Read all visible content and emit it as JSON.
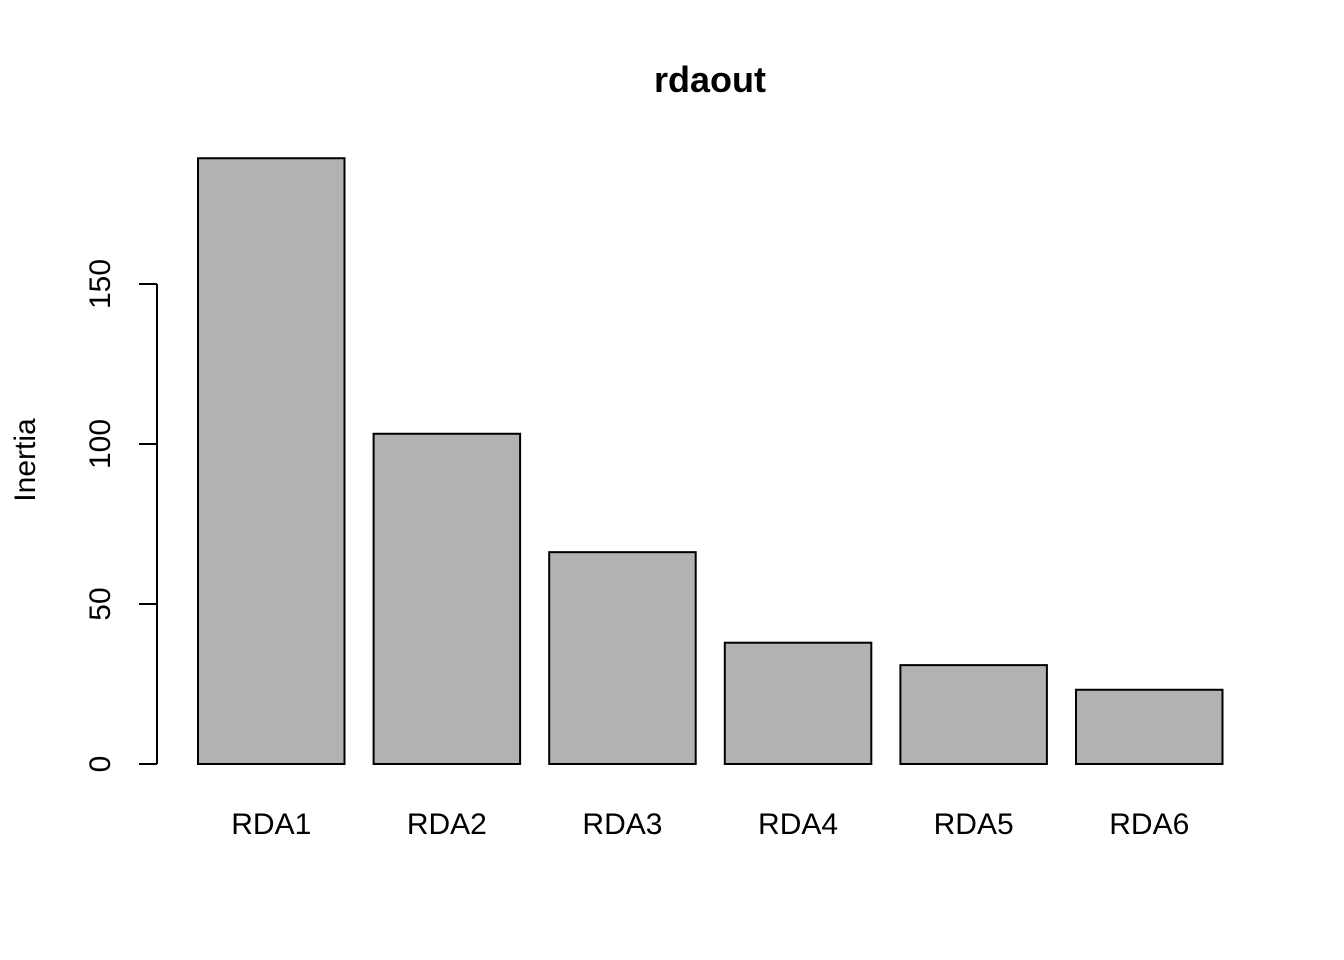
{
  "chart_data": {
    "type": "bar",
    "title": "rdaout",
    "xlabel": "",
    "ylabel": "Inertia",
    "categories": [
      "RDA1",
      "RDA2",
      "RDA3",
      "RDA4",
      "RDA5",
      "RDA6"
    ],
    "values": [
      189.3,
      103.2,
      66.2,
      37.9,
      30.9,
      23.2
    ],
    "ylim": [
      0,
      190
    ],
    "yticks": [
      0,
      50,
      100,
      150
    ],
    "ytick_labels": [
      "0",
      "50",
      "100",
      "150"
    ],
    "grid": false,
    "colors": {
      "bar_fill": "#b2b2b2",
      "bar_stroke": "#000000"
    }
  }
}
